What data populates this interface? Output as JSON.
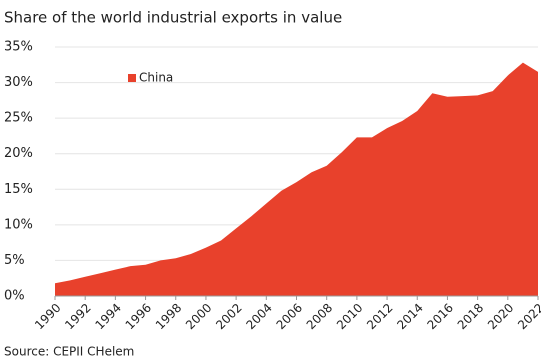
{
  "chart_data": {
    "type": "area",
    "subtitle": "Share of the world industrial exports in value",
    "source": "Source: CEPII CHelem",
    "x": [
      1990,
      1991,
      1992,
      1993,
      1994,
      1995,
      1996,
      1997,
      1998,
      1999,
      2000,
      2001,
      2002,
      2003,
      2004,
      2005,
      2006,
      2007,
      2008,
      2009,
      2010,
      2011,
      2012,
      2013,
      2014,
      2015,
      2016,
      2017,
      2018,
      2019,
      2020,
      2021,
      2022
    ],
    "series": [
      {
        "name": "China",
        "color": "#e8412c",
        "values": [
          1.8,
          2.2,
          2.7,
          3.2,
          3.7,
          4.2,
          4.4,
          5.0,
          5.3,
          5.9,
          6.8,
          7.8,
          9.5,
          11.2,
          13.0,
          14.8,
          16.0,
          17.4,
          18.3,
          20.2,
          22.3,
          22.3,
          23.6,
          24.6,
          26.0,
          28.5,
          28.0,
          28.1,
          28.2,
          28.8,
          31.0,
          32.8,
          31.5
        ]
      }
    ],
    "xlim": [
      1990,
      2022
    ],
    "xticks": [
      1990,
      1992,
      1994,
      1996,
      1998,
      2000,
      2002,
      2004,
      2006,
      2008,
      2010,
      2012,
      2014,
      2016,
      2018,
      2020,
      2022
    ],
    "ylim": [
      0,
      35
    ],
    "yticks": [
      {
        "value": 0,
        "label": "0%"
      },
      {
        "value": 5,
        "label": "5%"
      },
      {
        "value": 10,
        "label": "10%"
      },
      {
        "value": 15,
        "label": "15%"
      },
      {
        "value": 20,
        "label": "20%"
      },
      {
        "value": 25,
        "label": "25%"
      },
      {
        "value": 30,
        "label": "30%"
      },
      {
        "value": 35,
        "label": "35%"
      }
    ],
    "grid": true,
    "legend": "upper left"
  }
}
